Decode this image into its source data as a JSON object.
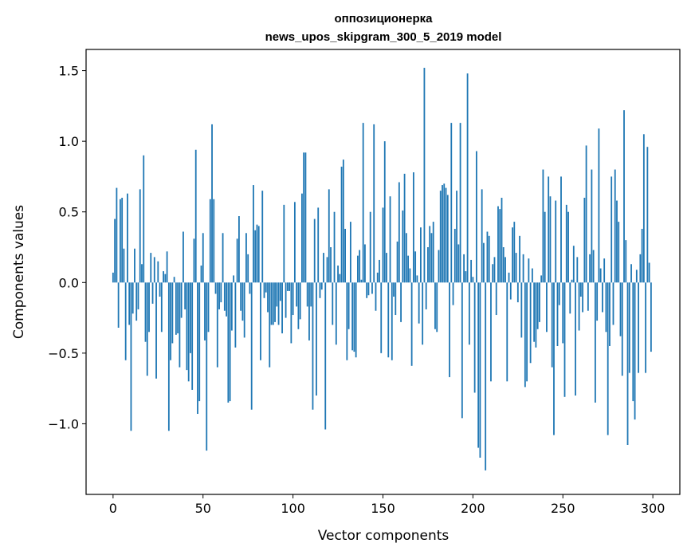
{
  "chart_data": {
    "type": "bar",
    "title_line1": "оппозиционерка",
    "title_line2": "news_upos_skipgram_300_5_2019 model",
    "xlabel": "Vector components",
    "ylabel": "Components values",
    "xlim": [
      -15,
      315
    ],
    "ylim": [
      -1.5,
      1.65
    ],
    "xticks": [
      0,
      50,
      100,
      150,
      200,
      250,
      300
    ],
    "xtick_labels": [
      "0",
      "50",
      "100",
      "150",
      "200",
      "250",
      "300"
    ],
    "yticks": [
      -1.0,
      -0.5,
      0.0,
      0.5,
      1.0,
      1.5
    ],
    "ytick_labels": [
      "−1.0",
      "−0.5",
      "0.0",
      "0.5",
      "1.0",
      "1.5"
    ],
    "grid": false,
    "bar_color": "#1f77b4",
    "x": [
      0,
      1,
      2,
      3,
      4,
      5,
      6,
      7,
      8,
      9,
      10,
      11,
      12,
      13,
      14,
      15,
      16,
      17,
      18,
      19,
      20,
      21,
      22,
      23,
      24,
      25,
      26,
      27,
      28,
      29,
      30,
      31,
      32,
      33,
      34,
      35,
      36,
      37,
      38,
      39,
      40,
      41,
      42,
      43,
      44,
      45,
      46,
      47,
      48,
      49,
      50,
      51,
      52,
      53,
      54,
      55,
      56,
      57,
      58,
      59,
      60,
      61,
      62,
      63,
      64,
      65,
      66,
      67,
      68,
      69,
      70,
      71,
      72,
      73,
      74,
      75,
      76,
      77,
      78,
      79,
      80,
      81,
      82,
      83,
      84,
      85,
      86,
      87,
      88,
      89,
      90,
      91,
      92,
      93,
      94,
      95,
      96,
      97,
      98,
      99,
      100,
      101,
      102,
      103,
      104,
      105,
      106,
      107,
      108,
      109,
      110,
      111,
      112,
      113,
      114,
      115,
      116,
      117,
      118,
      119,
      120,
      121,
      122,
      123,
      124,
      125,
      126,
      127,
      128,
      129,
      130,
      131,
      132,
      133,
      134,
      135,
      136,
      137,
      138,
      139,
      140,
      141,
      142,
      143,
      144,
      145,
      146,
      147,
      148,
      149,
      150,
      151,
      152,
      153,
      154,
      155,
      156,
      157,
      158,
      159,
      160,
      161,
      162,
      163,
      164,
      165,
      166,
      167,
      168,
      169,
      170,
      171,
      172,
      173,
      174,
      175,
      176,
      177,
      178,
      179,
      180,
      181,
      182,
      183,
      184,
      185,
      186,
      187,
      188,
      189,
      190,
      191,
      192,
      193,
      194,
      195,
      196,
      197,
      198,
      199,
      200,
      201,
      202,
      203,
      204,
      205,
      206,
      207,
      208,
      209,
      210,
      211,
      212,
      213,
      214,
      215,
      216,
      217,
      218,
      219,
      220,
      221,
      222,
      223,
      224,
      225,
      226,
      227,
      228,
      229,
      230,
      231,
      232,
      233,
      234,
      235,
      236,
      237,
      238,
      239,
      240,
      241,
      242,
      243,
      244,
      245,
      246,
      247,
      248,
      249,
      250,
      251,
      252,
      253,
      254,
      255,
      256,
      257,
      258,
      259,
      260,
      261,
      262,
      263,
      264,
      265,
      266,
      267,
      268,
      269,
      270,
      271,
      272,
      273,
      274,
      275,
      276,
      277,
      278,
      279,
      280,
      281,
      282,
      283,
      284,
      285,
      286,
      287,
      288,
      289,
      290,
      291,
      292,
      293,
      294,
      295,
      296,
      297,
      298,
      299
    ],
    "values": [
      0.07,
      0.45,
      0.67,
      -0.32,
      0.59,
      0.6,
      0.24,
      -0.55,
      0.63,
      -0.3,
      -1.05,
      -0.22,
      0.24,
      -0.27,
      -0.19,
      0.66,
      0.13,
      0.9,
      -0.42,
      -0.66,
      -0.35,
      0.21,
      -0.15,
      0.18,
      -0.68,
      0.15,
      -0.1,
      -0.35,
      0.08,
      0.06,
      0.22,
      -1.05,
      -0.55,
      -0.43,
      0.04,
      -0.37,
      -0.36,
      -0.6,
      -0.25,
      0.36,
      -0.19,
      -0.62,
      -0.7,
      -0.5,
      -0.76,
      0.31,
      0.94,
      -0.93,
      -0.84,
      0.12,
      0.35,
      -0.41,
      -1.19,
      -0.35,
      0.59,
      1.12,
      0.59,
      -0.08,
      -0.6,
      -0.19,
      -0.14,
      0.35,
      -0.2,
      -0.24,
      -0.85,
      -0.84,
      -0.34,
      0.05,
      -0.46,
      0.31,
      0.47,
      -0.2,
      -0.27,
      -0.39,
      0.35,
      0.2,
      -0.08,
      -0.9,
      0.69,
      0.37,
      0.41,
      0.4,
      -0.55,
      0.65,
      -0.11,
      -0.07,
      -0.21,
      -0.6,
      -0.3,
      -0.3,
      -0.28,
      -0.17,
      -0.3,
      -0.13,
      -0.36,
      0.55,
      -0.25,
      -0.06,
      -0.06,
      -0.43,
      -0.23,
      0.57,
      -0.17,
      -0.33,
      -0.26,
      0.63,
      0.92,
      0.92,
      -0.17,
      -0.41,
      -0.17,
      -0.9,
      0.45,
      -0.8,
      0.53,
      -0.11,
      -0.05,
      0.21,
      -1.04,
      0.18,
      0.66,
      0.25,
      -0.3,
      0.5,
      -0.44,
      0.12,
      0.06,
      0.82,
      0.87,
      0.38,
      -0.55,
      -0.33,
      0.43,
      -0.48,
      -0.49,
      -0.53,
      0.19,
      0.23,
      0.02,
      1.13,
      0.27,
      -0.11,
      -0.09,
      0.5,
      -0.08,
      1.12,
      -0.2,
      0.07,
      0.16,
      -0.5,
      0.53,
      1.0,
      0.21,
      -0.53,
      0.61,
      -0.55,
      -0.1,
      -0.23,
      0.29,
      0.71,
      -0.28,
      0.51,
      0.77,
      0.35,
      0.19,
      0.1,
      -0.59,
      0.78,
      0.22,
      0.05,
      -0.29,
      0.39,
      -0.44,
      1.52,
      -0.19,
      0.25,
      0.4,
      0.35,
      0.43,
      -0.33,
      -0.35,
      0.23,
      0.65,
      0.69,
      0.7,
      0.67,
      0.62,
      -0.67,
      1.13,
      -0.16,
      0.38,
      0.65,
      0.27,
      1.13,
      -0.96,
      0.2,
      0.08,
      1.48,
      -0.44,
      0.16,
      0.04,
      -0.78,
      0.93,
      -1.17,
      -1.24,
      0.66,
      0.28,
      -1.33,
      0.36,
      0.33,
      -0.7,
      0.13,
      0.18,
      -0.23,
      0.54,
      0.52,
      0.6,
      0.25,
      0.18,
      -0.7,
      0.07,
      -0.12,
      0.39,
      0.43,
      0.21,
      -0.14,
      0.33,
      -0.39,
      0.2,
      -0.74,
      -0.7,
      0.17,
      -0.57,
      0.1,
      -0.42,
      -0.46,
      -0.33,
      -0.28,
      0.05,
      0.8,
      0.5,
      -0.35,
      0.75,
      0.61,
      -0.6,
      -1.08,
      0.58,
      -0.45,
      -0.16,
      0.75,
      -0.43,
      -0.81,
      0.55,
      0.5,
      -0.22,
      0.02,
      0.26,
      -0.8,
      0.18,
      -0.34,
      -0.1,
      -0.21,
      0.6,
      0.97,
      -0.2,
      0.2,
      0.8,
      0.23,
      -0.85,
      -0.27,
      1.09,
      0.1,
      -0.21,
      0.17,
      -0.35,
      -1.08,
      -0.45,
      0.75,
      -0.3,
      0.8,
      0.58,
      0.43,
      -0.38,
      -0.66,
      1.22,
      0.3,
      -1.15,
      -0.64,
      0.13,
      -0.84,
      -0.97,
      0.09,
      -0.64,
      0.2,
      0.38,
      1.05,
      -0.64,
      0.96,
      0.14,
      -0.49
    ]
  }
}
